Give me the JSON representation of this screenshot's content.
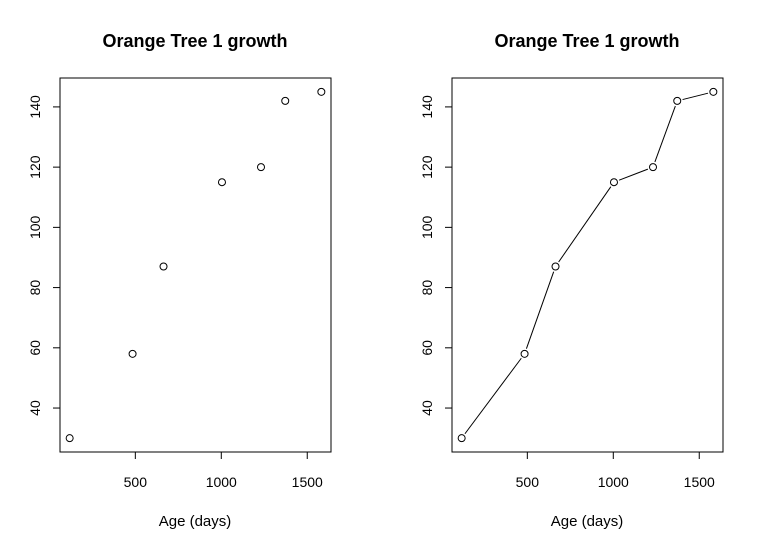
{
  "chart_data": [
    {
      "type": "scatter",
      "title": "Orange Tree 1 growth",
      "xlabel": "Age (days)",
      "ylabel": "",
      "x": [
        118,
        484,
        664,
        1004,
        1231,
        1372,
        1582
      ],
      "y": [
        30,
        58,
        87,
        115,
        120,
        142,
        145
      ],
      "xticks": [
        500,
        1000,
        1500
      ],
      "yticks": [
        40,
        60,
        80,
        100,
        120,
        140
      ],
      "xlim": [
        61.84,
        1638.16
      ],
      "ylim": [
        25.4,
        149.6
      ],
      "grid": false,
      "connect": false
    },
    {
      "type": "line",
      "title": "Orange Tree 1 growth",
      "xlabel": "Age (days)",
      "ylabel": "",
      "x": [
        118,
        484,
        664,
        1004,
        1231,
        1372,
        1582
      ],
      "y": [
        30,
        58,
        87,
        115,
        120,
        142,
        145
      ],
      "xticks": [
        500,
        1000,
        1500
      ],
      "yticks": [
        40,
        60,
        80,
        100,
        120,
        140
      ],
      "xlim": [
        61.84,
        1638.16
      ],
      "ylim": [
        25.4,
        149.6
      ],
      "grid": false,
      "connect": true,
      "markers": "open-circle"
    }
  ]
}
